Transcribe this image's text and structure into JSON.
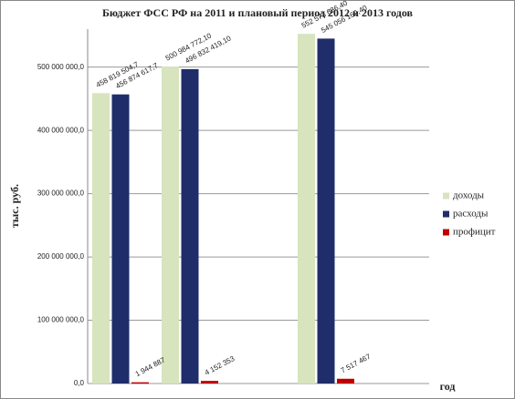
{
  "chart_data": {
    "type": "bar",
    "title": "Бюджет ФСС РФ на 2011 и плановый период 2012 и 2013 годов",
    "y_label": "тыс. руб.",
    "x_label": "год",
    "categories": [
      null,
      null,
      null
    ],
    "series": [
      {
        "name": "доходы",
        "color": "#d7e4bd",
        "values": [
          458819504.7,
          500984772.1,
          552573636.4
        ],
        "value_labels": [
          "458 819 504,7",
          "500 984 772,10",
          "552 573 636,40"
        ]
      },
      {
        "name": "расходы",
        "color": "#1f2d6b",
        "values": [
          456874617.7,
          496832419.1,
          545056169.4
        ],
        "value_labels": [
          "456 874 617,7",
          "496 832 419,10",
          "545 056 169,40"
        ]
      },
      {
        "name": "профицит",
        "color": "#c00000",
        "values": [
          1944887,
          4152353,
          7517467
        ],
        "value_labels": [
          "1 944 887",
          "4 152 353",
          "7 517 467"
        ]
      }
    ],
    "ylim": [
      0,
      560000000
    ],
    "yticks": [
      {
        "value": 0,
        "label": "0,0"
      },
      {
        "value": 100000000,
        "label": "100 000 000,0"
      },
      {
        "value": 200000000,
        "label": "200 000 000,0"
      },
      {
        "value": 300000000,
        "label": "300 000 000,0"
      },
      {
        "value": 400000000,
        "label": "400 000 000,0"
      },
      {
        "value": 500000000,
        "label": "500 000 000,0"
      }
    ],
    "grid": true,
    "legend": "right"
  }
}
